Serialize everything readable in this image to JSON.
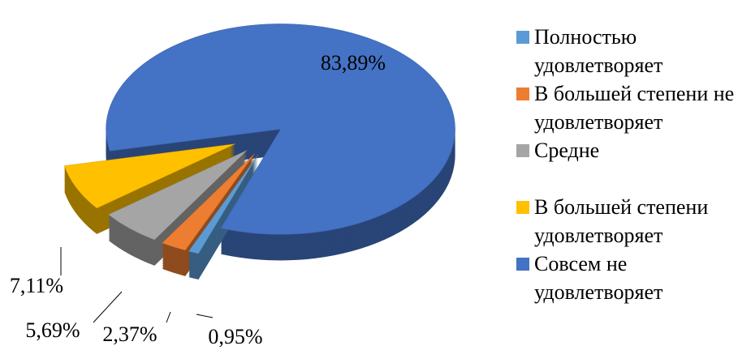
{
  "chart_data": {
    "type": "pie",
    "categories": [
      "Полностью удовлетворяет",
      "В большей степени не удовлетворяет",
      "Средне",
      "В большей степени удовлетворяет",
      "Совсем не удовлетворяет"
    ],
    "values": [
      0.95,
      2.37,
      5.69,
      7.11,
      83.89
    ],
    "value_labels": [
      "0,95%",
      "2,37%",
      "5,69%",
      "7,11%",
      "83,89%"
    ],
    "colors": [
      "#5b9bd5",
      "#ed7d31",
      "#a5a5a5",
      "#ffc000",
      "#4472c4"
    ],
    "legend": "right"
  }
}
